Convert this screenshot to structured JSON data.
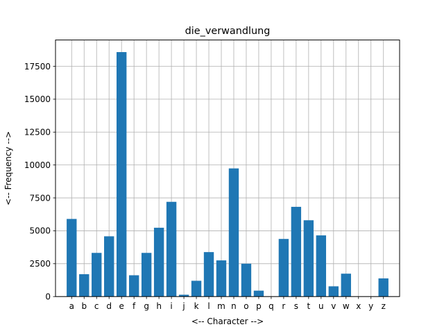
{
  "chart_data": {
    "type": "bar",
    "title": "die_verwandlung",
    "xlabel": "<-- Character -->",
    "ylabel": "<-- Frequency -->",
    "categories": [
      "a",
      "b",
      "c",
      "d",
      "e",
      "f",
      "g",
      "h",
      "i",
      "j",
      "k",
      "l",
      "m",
      "n",
      "o",
      "p",
      "q",
      "r",
      "s",
      "t",
      "u",
      "v",
      "w",
      "x",
      "y",
      "z"
    ],
    "values": [
      5900,
      1700,
      3320,
      4580,
      18580,
      1620,
      3320,
      5230,
      7200,
      140,
      1200,
      3380,
      2750,
      9740,
      2500,
      450,
      0,
      4380,
      6820,
      5800,
      4650,
      780,
      1740,
      0,
      0,
      1380
    ],
    "yticks": [
      "0",
      "2500",
      "5000",
      "7500",
      "10000",
      "12500",
      "15000",
      "17500"
    ],
    "ylim": [
      0,
      19500
    ],
    "grid": true,
    "bar_color": "#1f77b4"
  }
}
